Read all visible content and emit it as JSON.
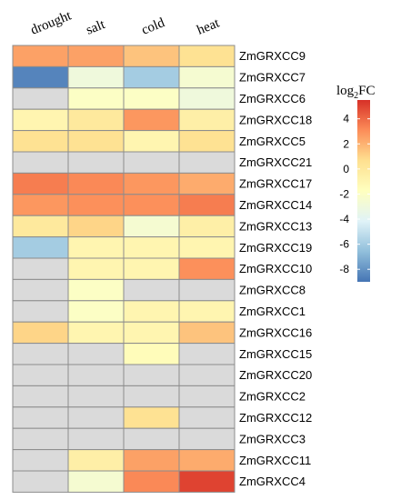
{
  "chart_data": {
    "type": "heatmap",
    "columns": [
      "drought",
      "salt",
      "cold",
      "heat"
    ],
    "rows": [
      "ZmGRXCC9",
      "ZmGRXCC7",
      "ZmGRXCC6",
      "ZmGRXCC18",
      "ZmGRXCC5",
      "ZmGRXCC21",
      "ZmGRXCC17",
      "ZmGRXCC14",
      "ZmGRXCC13",
      "ZmGRXCC19",
      "ZmGRXCC10",
      "ZmGRXCC8",
      "ZmGRXCC1",
      "ZmGRXCC16",
      "ZmGRXCC15",
      "ZmGRXCC20",
      "ZmGRXCC2",
      "ZmGRXCC12",
      "ZmGRXCC3",
      "ZmGRXCC11",
      "ZmGRXCC4"
    ],
    "values": [
      [
        2.5,
        2.5,
        1.5,
        0.5
      ],
      [
        -8.5,
        -3,
        -6,
        -2.5
      ],
      [
        null,
        -2,
        -2,
        -3
      ],
      [
        -1,
        0,
        2.8,
        -0.5
      ],
      [
        0.5,
        0.5,
        -1,
        0.5
      ],
      [
        null,
        null,
        null,
        null
      ],
      [
        3.5,
        3.2,
        2.8,
        2.2
      ],
      [
        2.8,
        3.0,
        3.0,
        3.5
      ],
      [
        0,
        1.0,
        -2.5,
        -0.5
      ],
      [
        -6,
        -1,
        -1,
        -1
      ],
      [
        null,
        -1,
        -1,
        3.0
      ],
      [
        null,
        -2,
        null,
        null
      ],
      [
        null,
        -2,
        -1,
        -1
      ],
      [
        1.0,
        -1,
        -1,
        1.5
      ],
      [
        null,
        null,
        -1.5,
        null
      ],
      [
        null,
        null,
        null,
        null
      ],
      [
        null,
        null,
        null,
        null
      ],
      [
        null,
        null,
        0.5,
        null
      ],
      [
        null,
        null,
        null,
        null
      ],
      [
        null,
        -0.5,
        2.5,
        2.2
      ],
      [
        null,
        -2.5,
        3.2,
        5.0
      ]
    ],
    "legend": {
      "title_main": "log",
      "title_sub": "2",
      "title_tail": "FC",
      "ticks": [
        4,
        2,
        0,
        -2,
        -4,
        -6,
        -8
      ],
      "min": -9,
      "max": 5.5,
      "placement": "right"
    },
    "colors": {
      "na": "#dadada",
      "stops": [
        "#4575b4",
        "#91bfdb",
        "#e0f3f8",
        "#ffffbf",
        "#fee090",
        "#fc8d59",
        "#d73027"
      ]
    }
  }
}
